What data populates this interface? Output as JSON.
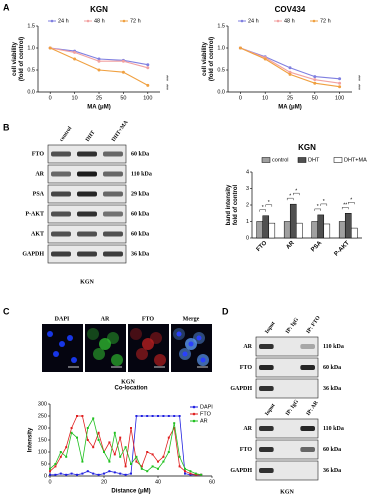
{
  "panel_labels": [
    "A",
    "B",
    "C",
    "D"
  ],
  "chart_data": [
    {
      "type": "line",
      "title": "KGN",
      "x_label": "MA (μM)",
      "y_label": [
        "cell viability",
        "(fold of control)"
      ],
      "categories": [
        "0",
        "10",
        "25",
        "50",
        "100"
      ],
      "ylim": [
        0,
        1.5
      ],
      "yticks": [
        {
          "value": 0,
          "label": "0.0"
        },
        {
          "value": 0.5,
          "label": "0.5"
        },
        {
          "value": 1,
          "label": "1.0"
        },
        {
          "value": 1.5,
          "label": "1.5"
        }
      ],
      "legend": "top",
      "annotations": [
        "***",
        "***"
      ],
      "series": [
        {
          "name": "24 h",
          "color": "#7f7fe0",
          "values": [
            1.0,
            0.93,
            0.75,
            0.72,
            0.62
          ]
        },
        {
          "name": "48 h",
          "color": "#f2a1a1",
          "values": [
            1.0,
            0.9,
            0.7,
            0.7,
            0.55
          ]
        },
        {
          "name": "72 h",
          "color": "#f0a040",
          "values": [
            1.0,
            0.75,
            0.5,
            0.45,
            0.15
          ]
        }
      ]
    },
    {
      "type": "line",
      "title": "COV434",
      "x_label": "MA (μM)",
      "y_label": [
        "cell viability",
        "(fold of control)"
      ],
      "categories": [
        "0",
        "10",
        "25",
        "50",
        "100"
      ],
      "ylim": [
        0,
        1.5
      ],
      "yticks": [
        {
          "value": 0,
          "label": "0.0"
        },
        {
          "value": 0.5,
          "label": "0.5"
        },
        {
          "value": 1,
          "label": "1.0"
        },
        {
          "value": 1.5,
          "label": "1.5"
        }
      ],
      "legend": "top",
      "annotations": [
        "***",
        "***"
      ],
      "series": [
        {
          "name": "24 h",
          "color": "#7f7fe0",
          "values": [
            1.0,
            0.8,
            0.55,
            0.35,
            0.3
          ]
        },
        {
          "name": "48 h",
          "color": "#f2a1a1",
          "values": [
            1.0,
            0.78,
            0.45,
            0.28,
            0.2
          ]
        },
        {
          "name": "72 h",
          "color": "#f0a040",
          "values": [
            1.0,
            0.75,
            0.4,
            0.2,
            0.12
          ]
        }
      ]
    },
    {
      "type": "bar",
      "title": "KGN",
      "y_label": [
        "band intensity",
        "fold of control"
      ],
      "categories": [
        "FTO",
        "AR",
        "PSA",
        "P-AKT"
      ],
      "ylim": [
        0,
        4
      ],
      "yticks": [
        0,
        1,
        2,
        3,
        4
      ],
      "legend": "top",
      "annotations": [
        "*",
        "*",
        "*",
        "*",
        "*",
        "*",
        "**",
        "*"
      ],
      "series": [
        {
          "name": "control",
          "color": "#a0a0a0",
          "values": [
            1.0,
            1.0,
            1.0,
            1.0
          ]
        },
        {
          "name": "DHT",
          "color": "#505050",
          "values": [
            1.35,
            2.05,
            1.4,
            1.5
          ]
        },
        {
          "name": "DHT+MA",
          "color": "#ffffff",
          "values": [
            0.9,
            0.9,
            0.85,
            0.6
          ]
        }
      ]
    },
    {
      "type": "line",
      "title": "Co-location",
      "x_label": "Distance (μM)",
      "y_label": [
        "Intensity"
      ],
      "x": [
        0,
        2,
        4,
        6,
        8,
        10,
        12,
        14,
        16,
        18,
        20,
        22,
        24,
        26,
        28,
        30,
        32,
        34,
        36,
        38,
        40,
        42,
        44,
        46,
        48,
        50,
        52,
        54,
        56
      ],
      "xlim": [
        0,
        60
      ],
      "xticks": [
        0,
        20,
        40,
        60
      ],
      "ylim": [
        0,
        300
      ],
      "yticks": [
        0,
        50,
        100,
        150,
        200,
        250,
        300
      ],
      "legend": "upper right",
      "series": [
        {
          "name": "DAPI",
          "color": "#2020e0",
          "values": [
            5,
            5,
            10,
            5,
            10,
            5,
            10,
            20,
            10,
            5,
            10,
            20,
            15,
            10,
            5,
            10,
            250,
            250,
            250,
            250,
            250,
            250,
            250,
            250,
            250,
            10,
            5,
            5,
            5
          ]
        },
        {
          "name": "FTO",
          "color": "#e02020",
          "values": [
            20,
            40,
            80,
            120,
            200,
            250,
            250,
            150,
            120,
            180,
            100,
            140,
            90,
            160,
            40,
            200,
            60,
            40,
            100,
            90,
            60,
            80,
            160,
            200,
            40,
            20,
            10,
            5,
            5
          ]
        },
        {
          "name": "AR",
          "color": "#20c020",
          "values": [
            30,
            50,
            100,
            80,
            180,
            160,
            60,
            200,
            240,
            150,
            100,
            60,
            180,
            80,
            120,
            50,
            80,
            30,
            20,
            40,
            30,
            60,
            100,
            220,
            80,
            30,
            20,
            10,
            5
          ]
        }
      ]
    }
  ],
  "blot_b": {
    "columns": [
      "control",
      "DHT",
      "DHT+MA"
    ],
    "rows": [
      {
        "label": "FTO",
        "size": "60 kDa"
      },
      {
        "label": "AR",
        "size": "110 kDa"
      },
      {
        "label": "PSA",
        "size": "29 kDa"
      },
      {
        "label": "P-AKT",
        "size": "60 kDa"
      },
      {
        "label": "AKT",
        "size": "60 kDa"
      },
      {
        "label": "GAPDH",
        "size": "36 kDa"
      }
    ],
    "caption": "KGN"
  },
  "panel_c": {
    "channels": [
      "DAPI",
      "AR",
      "FTO",
      "Merge"
    ],
    "caption": "KGN"
  },
  "panel_d": {
    "blots": [
      {
        "columns": [
          "Input",
          "IP: IgG",
          "IP: FTO"
        ],
        "rows": [
          {
            "label": "AR",
            "size": "110 kDa"
          },
          {
            "label": "FTO",
            "size": "60 kDa"
          },
          {
            "label": "GAPDH",
            "size": "36 kDa"
          }
        ]
      },
      {
        "columns": [
          "Input",
          "IP: IgG",
          "IP: AR"
        ],
        "rows": [
          {
            "label": "AR",
            "size": "110 kDa"
          },
          {
            "label": "FTO",
            "size": "60 kDa"
          },
          {
            "label": "GAPDH",
            "size": "36 kDa"
          }
        ]
      }
    ],
    "caption": "KGN"
  }
}
